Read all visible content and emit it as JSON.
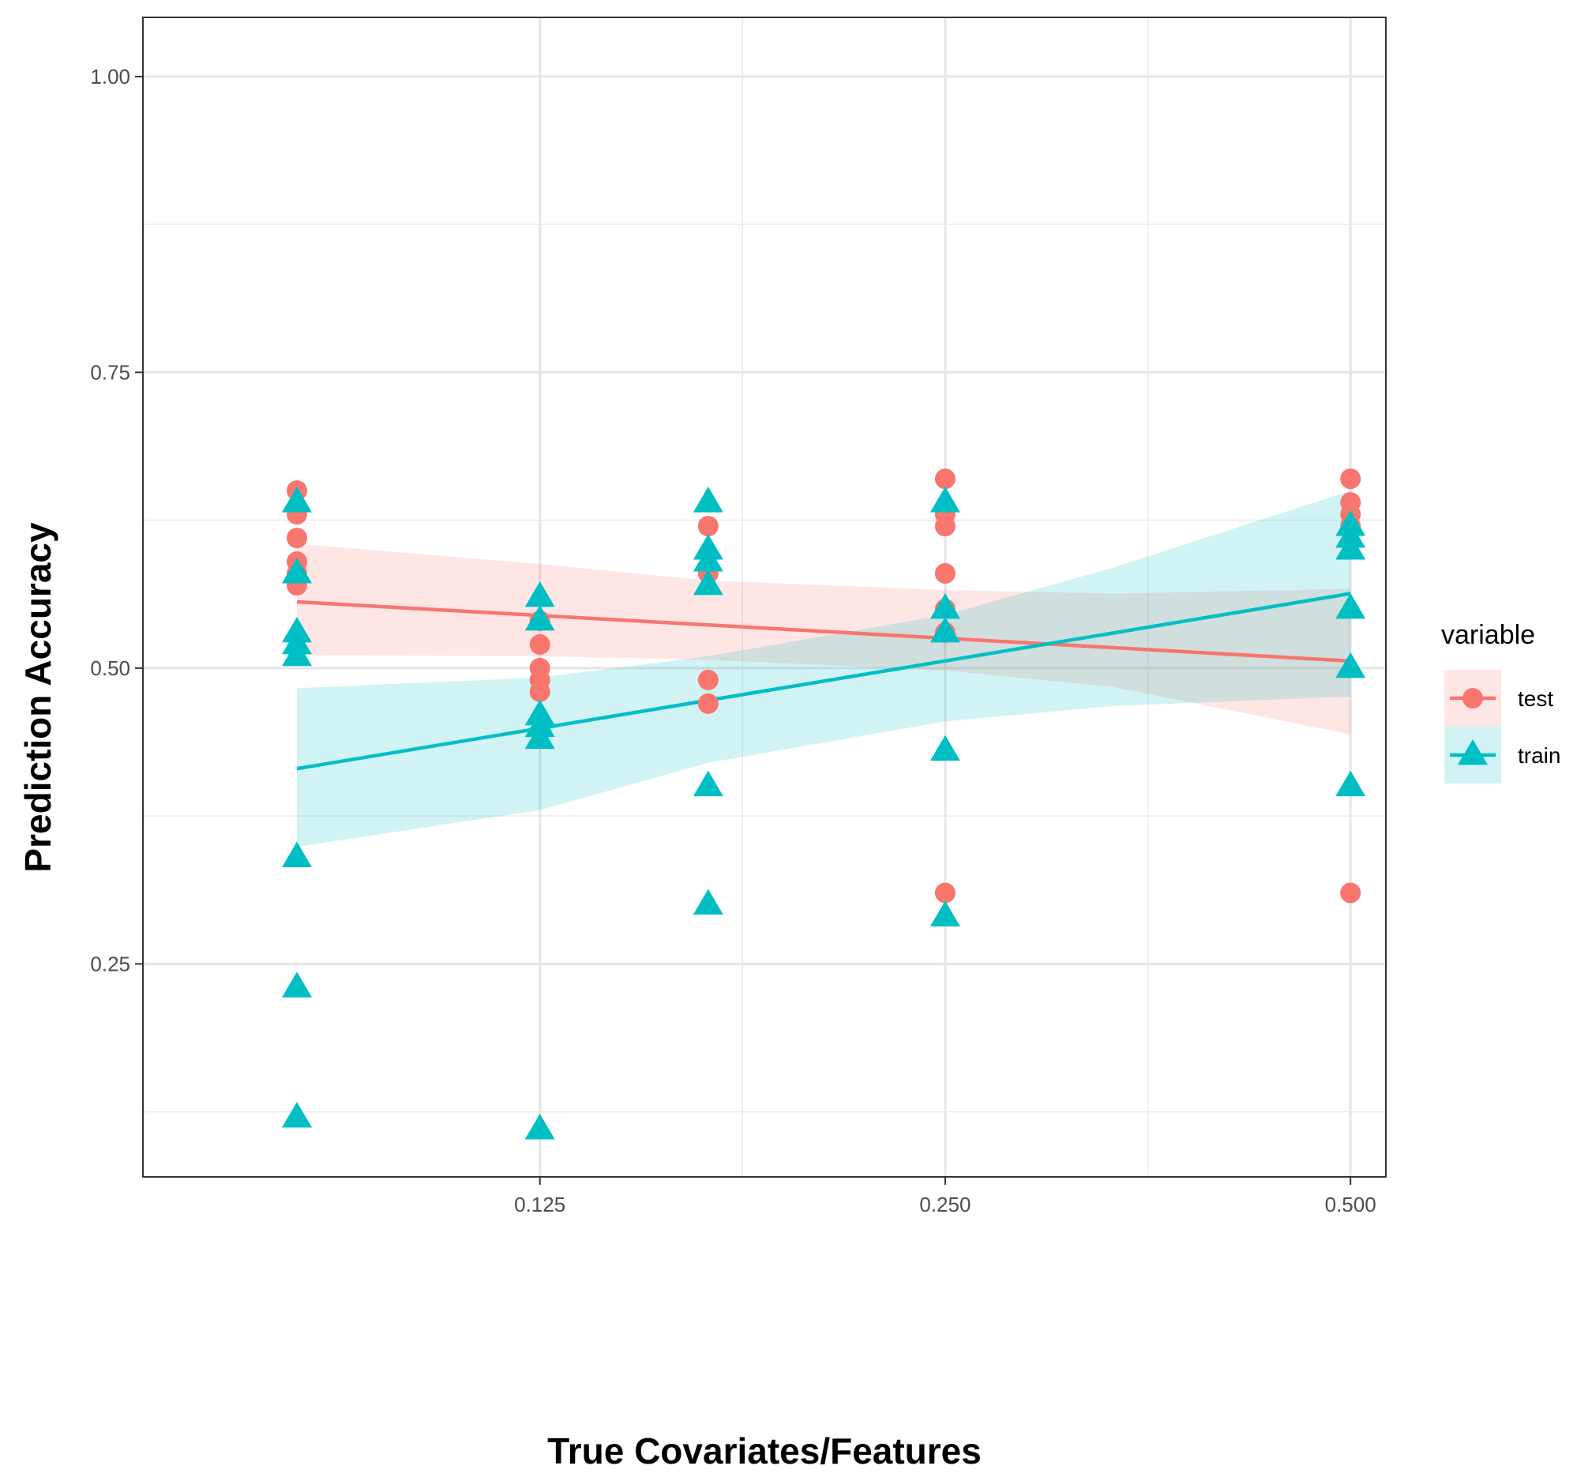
{
  "chart_data": {
    "type": "scatter",
    "xlabel": "True Covariates/Features",
    "ylabel": "Prediction Accuracy",
    "x_scale": "log2",
    "x_ticks": [
      0.125,
      0.25,
      0.5
    ],
    "x_tick_labels": [
      "0.125",
      "0.250",
      "0.500"
    ],
    "xlim": [
      0.0634,
      0.5312
    ],
    "y_ticks": [
      0.25,
      0.5,
      0.75,
      1.0
    ],
    "y_tick_labels": [
      "0.25",
      "0.50",
      "0.75",
      "1.00"
    ],
    "ylim": [
      0.07,
      1.05
    ],
    "grid": true,
    "legend": {
      "title": "variable",
      "position": "right"
    },
    "series": [
      {
        "name": "test",
        "color": "#F8766D",
        "marker": "circle",
        "points": [
          [
            0.0825,
            0.65
          ],
          [
            0.0825,
            0.63
          ],
          [
            0.0825,
            0.61
          ],
          [
            0.0825,
            0.59
          ],
          [
            0.0825,
            0.58
          ],
          [
            0.0825,
            0.57
          ],
          [
            0.125,
            0.54
          ],
          [
            0.125,
            0.52
          ],
          [
            0.125,
            0.5
          ],
          [
            0.125,
            0.49
          ],
          [
            0.125,
            0.48
          ],
          [
            0.1667,
            0.62
          ],
          [
            0.1667,
            0.58
          ],
          [
            0.1667,
            0.49
          ],
          [
            0.1667,
            0.47
          ],
          [
            0.25,
            0.66
          ],
          [
            0.25,
            0.63
          ],
          [
            0.25,
            0.62
          ],
          [
            0.25,
            0.58
          ],
          [
            0.25,
            0.55
          ],
          [
            0.25,
            0.53
          ],
          [
            0.25,
            0.31
          ],
          [
            0.5,
            0.66
          ],
          [
            0.5,
            0.64
          ],
          [
            0.5,
            0.63
          ],
          [
            0.5,
            0.62
          ],
          [
            0.5,
            0.31
          ]
        ],
        "fit": {
          "x": [
            0.0825,
            0.5
          ],
          "y": [
            0.556,
            0.506
          ]
        },
        "ci_lower": [
          [
            0.0825,
            0.511
          ],
          [
            0.125,
            0.51
          ],
          [
            0.1667,
            0.507
          ],
          [
            0.25,
            0.498
          ],
          [
            0.3333,
            0.484
          ],
          [
            0.5,
            0.444
          ]
        ],
        "ci_upper": [
          [
            0.0825,
            0.605
          ],
          [
            0.125,
            0.588
          ],
          [
            0.1667,
            0.574
          ],
          [
            0.25,
            0.566
          ],
          [
            0.3333,
            0.563
          ],
          [
            0.5,
            0.567
          ]
        ]
      },
      {
        "name": "train",
        "color": "#00BFC4",
        "marker": "triangle",
        "points": [
          [
            0.0825,
            0.64
          ],
          [
            0.0825,
            0.58
          ],
          [
            0.0825,
            0.53
          ],
          [
            0.0825,
            0.52
          ],
          [
            0.0825,
            0.51
          ],
          [
            0.0825,
            0.34
          ],
          [
            0.0825,
            0.23
          ],
          [
            0.0825,
            0.12
          ],
          [
            0.125,
            0.56
          ],
          [
            0.125,
            0.54
          ],
          [
            0.125,
            0.46
          ],
          [
            0.125,
            0.45
          ],
          [
            0.125,
            0.44
          ],
          [
            0.125,
            0.11
          ],
          [
            0.1667,
            0.64
          ],
          [
            0.1667,
            0.6
          ],
          [
            0.1667,
            0.59
          ],
          [
            0.1667,
            0.57
          ],
          [
            0.1667,
            0.4
          ],
          [
            0.1667,
            0.3
          ],
          [
            0.25,
            0.64
          ],
          [
            0.25,
            0.55
          ],
          [
            0.25,
            0.53
          ],
          [
            0.25,
            0.43
          ],
          [
            0.25,
            0.29
          ],
          [
            0.5,
            0.62
          ],
          [
            0.5,
            0.61
          ],
          [
            0.5,
            0.6
          ],
          [
            0.5,
            0.55
          ],
          [
            0.5,
            0.5
          ],
          [
            0.5,
            0.4
          ]
        ],
        "fit": {
          "x": [
            0.0825,
            0.5
          ],
          "y": [
            0.415,
            0.563
          ]
        },
        "ci_lower": [
          [
            0.0825,
            0.349
          ],
          [
            0.125,
            0.38
          ],
          [
            0.1667,
            0.42
          ],
          [
            0.25,
            0.455
          ],
          [
            0.3333,
            0.468
          ],
          [
            0.5,
            0.476
          ]
        ],
        "ci_upper": [
          [
            0.0825,
            0.483
          ],
          [
            0.125,
            0.492
          ],
          [
            0.1667,
            0.51
          ],
          [
            0.25,
            0.545
          ],
          [
            0.3333,
            0.585
          ],
          [
            0.5,
            0.65
          ]
        ]
      }
    ]
  }
}
